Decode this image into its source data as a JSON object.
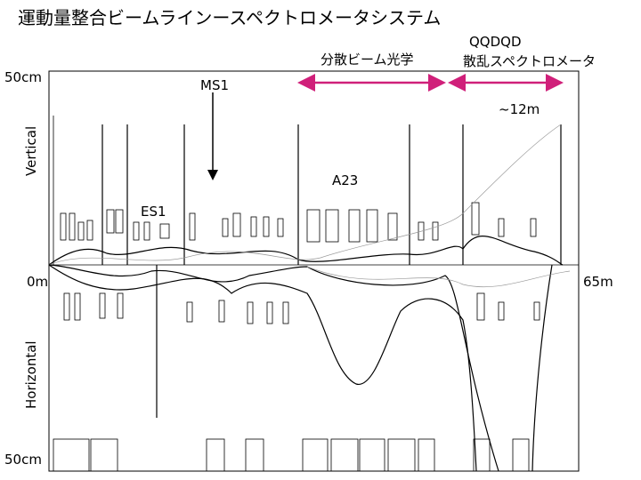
{
  "header": {
    "title": "運動量整合ビームラインースペクトロメータシステム"
  },
  "annotations": {
    "dispersive_optics": "分散ビーム光学",
    "spectrometer_magnets": "QQDQD",
    "spectrometer": "散乱スペクトロメータ",
    "ms1": "MS1",
    "length": "~12m",
    "a23": "A23",
    "es1": "ES1"
  },
  "axes": {
    "vertical_label": "Vertical",
    "horizontal_label": "Horizontal",
    "top_scale": "50cm",
    "bottom_scale": "50cm",
    "start": "0m",
    "end": "65m"
  }
}
